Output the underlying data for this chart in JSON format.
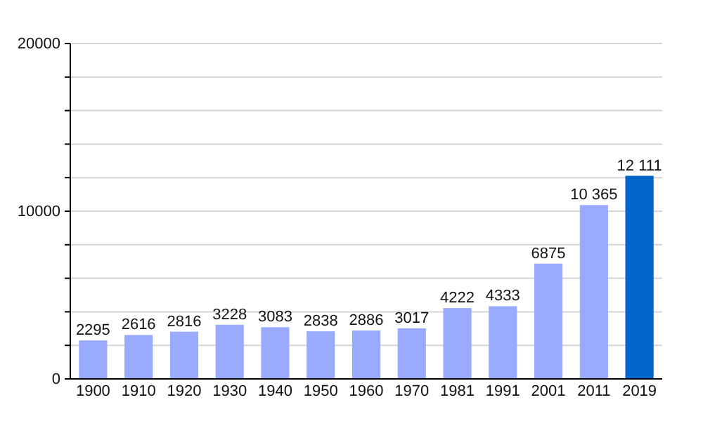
{
  "chart_data": {
    "type": "bar",
    "categories": [
      "1900",
      "1910",
      "1920",
      "1930",
      "1940",
      "1950",
      "1960",
      "1970",
      "1981",
      "1991",
      "2001",
      "2011",
      "2019"
    ],
    "values": [
      2295,
      2616,
      2816,
      3228,
      3083,
      2838,
      2886,
      3017,
      4222,
      4333,
      6875,
      10365,
      12111
    ],
    "colors": [
      "#99aaff",
      "#99aaff",
      "#99aaff",
      "#99aaff",
      "#99aaff",
      "#99aaff",
      "#99aaff",
      "#99aaff",
      "#99aaff",
      "#99aaff",
      "#99aaff",
      "#99aaff",
      "#0066cc"
    ],
    "value_labels": [
      "2295",
      "2616",
      "2816",
      "3228",
      "3083",
      "2838",
      "2886",
      "3017",
      "4222",
      "4333",
      "6875",
      "10 365",
      "12 111"
    ],
    "ylim": [
      0,
      20000
    ],
    "yticks": [
      0,
      {
        "value": 2000,
        "label": null
      },
      {
        "value": 4000,
        "label": null
      },
      {
        "value": 6000,
        "label": null
      },
      {
        "value": 8000,
        "label": null
      },
      10000,
      {
        "value": 12000,
        "label": null
      },
      {
        "value": 14000,
        "label": null
      },
      {
        "value": 16000,
        "label": null
      },
      {
        "value": 18000,
        "label": null
      },
      20000
    ],
    "grid": true
  }
}
